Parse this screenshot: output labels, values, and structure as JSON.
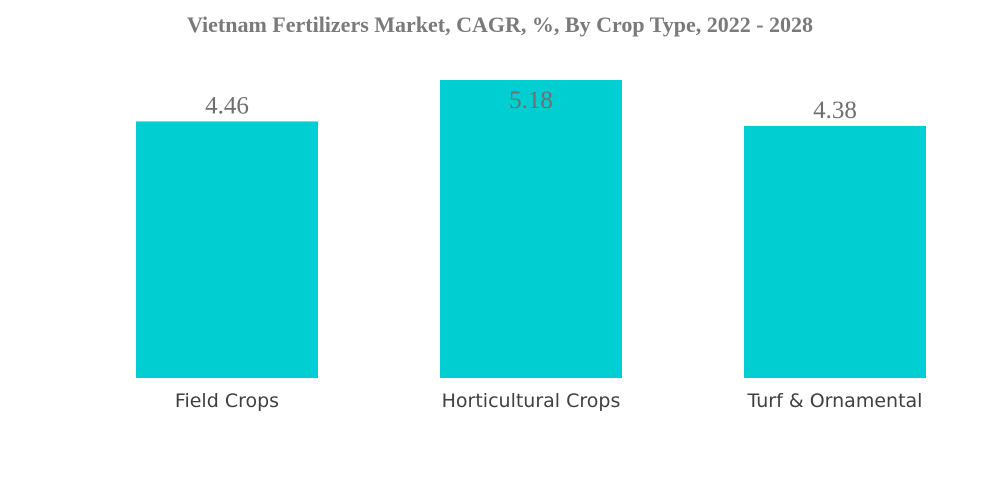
{
  "chart_data": {
    "type": "bar",
    "title": "Vietnam Fertilizers Market, CAGR, %, By Crop Type, 2022 - 2028",
    "categories": [
      "Field Crops",
      "Horticultural Crops",
      "Turf & Ornamental"
    ],
    "values": [
      4.46,
      5.18,
      4.38
    ],
    "value_labels": [
      "4.46",
      "5.18",
      "4.38"
    ],
    "xlabel": "",
    "ylabel": "",
    "grid": false,
    "legend": "none",
    "bar_color": "#00CED1",
    "ylim": [
      0,
      5.18
    ]
  }
}
